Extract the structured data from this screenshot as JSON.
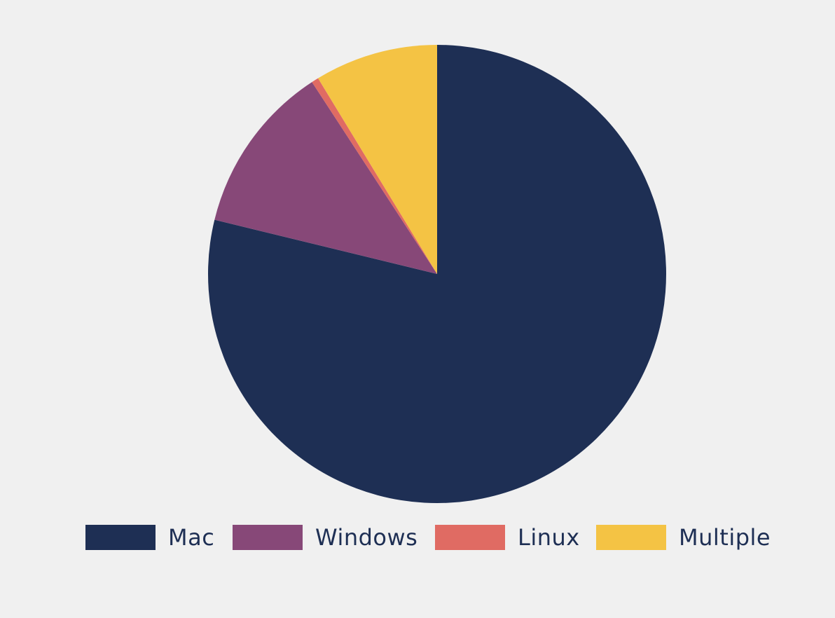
{
  "chart_data": {
    "type": "pie",
    "title": "",
    "slices": [
      {
        "label": "Mac",
        "value": 78.8,
        "color": "#1e2f54"
      },
      {
        "label": "Windows",
        "value": 12.0,
        "color": "#874878"
      },
      {
        "label": "Linux",
        "value": 0.5,
        "color": "#e06b63"
      },
      {
        "label": "Multiple",
        "value": 8.7,
        "color": "#f4c344"
      }
    ],
    "legend_position": "bottom"
  }
}
